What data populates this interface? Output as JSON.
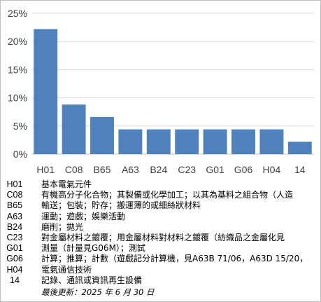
{
  "chart_data": {
    "type": "bar",
    "categories": [
      "H01",
      "C08",
      "B65",
      "A63",
      "B24",
      "C23",
      "G01",
      "G06",
      "H04",
      "14"
    ],
    "values": [
      22.2,
      8.8,
      6.6,
      4.4,
      4.4,
      4.4,
      4.4,
      4.4,
      4.4,
      2.2
    ],
    "y_unit": "%",
    "ylim": [
      0,
      25
    ],
    "yticks": [
      0,
      5,
      10,
      15,
      20,
      25
    ],
    "ytick_labels": [
      "0%",
      "5%",
      "10%",
      "15%",
      "20%",
      "25%"
    ],
    "grid": true,
    "bar_color": "#4f81bd",
    "grid_color": "#d9d9d9"
  },
  "legend": [
    {
      "code": "H01",
      "desc": "基本電氣元件"
    },
    {
      "code": "C08",
      "desc": "有機高分子化合物；其製備或化學加工；以其為基料之組合物（人造"
    },
    {
      "code": "B65",
      "desc": "輸送；包裝；貯存；搬運薄的或細絲狀材料"
    },
    {
      "code": "A63",
      "desc": "運動；遊戲；娛樂活動"
    },
    {
      "code": "B24",
      "desc": "磨削；拋光"
    },
    {
      "code": "C23",
      "desc": "對金屬材料之鍍覆；用金屬材料對材料之鍍覆（紡織品之金屬化見"
    },
    {
      "code": "G01",
      "desc": "測量（計量見G06M）；測試"
    },
    {
      "code": "G06",
      "desc": "計算；推算；計數（遊戲記分計算機，見A63B 71/06，A63D 15/20，"
    },
    {
      "code": "H04",
      "desc": "電氣通信技術"
    },
    {
      "code": "14",
      "desc": "記錄、通訊或資訊再生設備"
    }
  ],
  "footer": "最後更新：2025 年 6 月 30 日"
}
